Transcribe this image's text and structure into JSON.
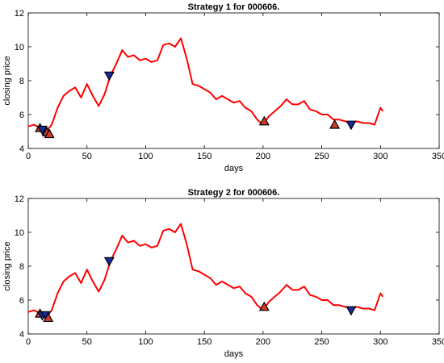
{
  "chart_data": [
    {
      "type": "line",
      "title": "Strategy 1 for 000606.",
      "xlabel": "days",
      "ylabel": "closing price",
      "xlim": [
        0,
        350
      ],
      "ylim": [
        4,
        12
      ],
      "xticks": [
        0,
        50,
        100,
        150,
        200,
        250,
        300,
        350
      ],
      "yticks": [
        4,
        6,
        8,
        10,
        12
      ],
      "grid": false,
      "line_color": "#ff0000",
      "series": [
        {
          "x": [
            0,
            5,
            10,
            15,
            20,
            25,
            30,
            35,
            40,
            45,
            50,
            55,
            60,
            65,
            70,
            75,
            80,
            85,
            90,
            95,
            100,
            105,
            110,
            115,
            120,
            125,
            130,
            135,
            140,
            145,
            150,
            155,
            160,
            165,
            170,
            175,
            180,
            185,
            190,
            195,
            200,
            205,
            210,
            215,
            220,
            225,
            230,
            235,
            240,
            245,
            250,
            255,
            260,
            265,
            270,
            275,
            280,
            285,
            290,
            295,
            300,
            302
          ],
          "y": [
            5.3,
            5.4,
            5.2,
            5.0,
            5.4,
            6.4,
            7.1,
            7.4,
            7.6,
            7.0,
            7.8,
            7.1,
            6.5,
            7.2,
            8.3,
            9.0,
            9.8,
            9.4,
            9.5,
            9.2,
            9.3,
            9.1,
            9.2,
            10.1,
            10.2,
            10.0,
            10.5,
            9.3,
            7.8,
            7.7,
            7.5,
            7.3,
            6.9,
            7.1,
            6.9,
            6.7,
            6.8,
            6.4,
            6.2,
            5.7,
            5.4,
            5.9,
            6.2,
            6.5,
            6.9,
            6.6,
            6.6,
            6.8,
            6.3,
            6.2,
            6.0,
            6.0,
            5.7,
            5.7,
            5.6,
            5.5,
            5.6,
            5.5,
            5.5,
            5.4,
            6.4,
            6.2
          ]
        }
      ],
      "signals": [
        {
          "type": "buy",
          "x": 10,
          "y": 5.2
        },
        {
          "type": "sell",
          "x": 12,
          "y": 5.1
        },
        {
          "type": "buy",
          "x": 16,
          "y": 4.95
        },
        {
          "type": "buy",
          "x": 18,
          "y": 4.85
        },
        {
          "type": "sell",
          "x": 69,
          "y": 8.3
        },
        {
          "type": "buy",
          "x": 201,
          "y": 5.6
        },
        {
          "type": "buy",
          "x": 261,
          "y": 5.4
        },
        {
          "type": "sell",
          "x": 275,
          "y": 5.4
        }
      ]
    },
    {
      "type": "line",
      "title": "Strategy 2 for 000606.",
      "xlabel": "days",
      "ylabel": "closing price",
      "xlim": [
        0,
        350
      ],
      "ylim": [
        4,
        12
      ],
      "xticks": [
        0,
        50,
        100,
        150,
        200,
        250,
        300,
        350
      ],
      "yticks": [
        4,
        6,
        8,
        10,
        12
      ],
      "grid": false,
      "line_color": "#ff0000",
      "series": [
        {
          "x": [
            0,
            5,
            10,
            15,
            20,
            25,
            30,
            35,
            40,
            45,
            50,
            55,
            60,
            65,
            70,
            75,
            80,
            85,
            90,
            95,
            100,
            105,
            110,
            115,
            120,
            125,
            130,
            135,
            140,
            145,
            150,
            155,
            160,
            165,
            170,
            175,
            180,
            185,
            190,
            195,
            200,
            205,
            210,
            215,
            220,
            225,
            230,
            235,
            240,
            245,
            250,
            255,
            260,
            265,
            270,
            275,
            280,
            285,
            290,
            295,
            300,
            302
          ],
          "y": [
            5.3,
            5.4,
            5.2,
            5.0,
            5.4,
            6.4,
            7.1,
            7.4,
            7.6,
            7.0,
            7.8,
            7.1,
            6.5,
            7.2,
            8.3,
            9.0,
            9.8,
            9.4,
            9.5,
            9.2,
            9.3,
            9.1,
            9.2,
            10.1,
            10.2,
            10.0,
            10.5,
            9.3,
            7.8,
            7.7,
            7.5,
            7.3,
            6.9,
            7.1,
            6.9,
            6.7,
            6.8,
            6.4,
            6.2,
            5.7,
            5.4,
            5.9,
            6.2,
            6.5,
            6.9,
            6.6,
            6.6,
            6.8,
            6.3,
            6.2,
            6.0,
            6.0,
            5.7,
            5.7,
            5.6,
            5.5,
            5.6,
            5.5,
            5.5,
            5.4,
            6.4,
            6.2
          ]
        }
      ],
      "signals": [
        {
          "type": "buy",
          "x": 10,
          "y": 5.2
        },
        {
          "type": "sell",
          "x": 12,
          "y": 5.1
        },
        {
          "type": "sell",
          "x": 15,
          "y": 5.1
        },
        {
          "type": "buy",
          "x": 17,
          "y": 4.95
        },
        {
          "type": "sell",
          "x": 69,
          "y": 8.3
        },
        {
          "type": "buy",
          "x": 201,
          "y": 5.6
        },
        {
          "type": "sell",
          "x": 275,
          "y": 5.4
        }
      ]
    }
  ]
}
